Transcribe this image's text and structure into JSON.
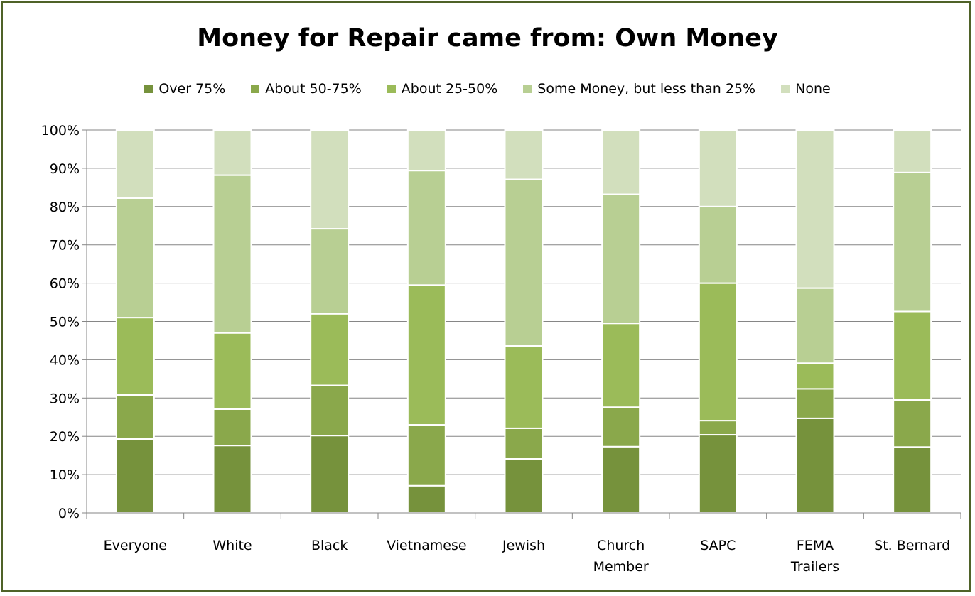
{
  "chart_data": {
    "type": "bar",
    "stacked": true,
    "title": "Money for Repair came from: Own Money",
    "xlabel": "",
    "ylabel": "",
    "ylim": [
      0,
      100
    ],
    "y_ticks": [
      "0%",
      "10%",
      "20%",
      "30%",
      "40%",
      "50%",
      "60%",
      "70%",
      "80%",
      "90%",
      "100%"
    ],
    "grid": true,
    "legend_position": "top",
    "categories": [
      [
        "Everyone"
      ],
      [
        "White"
      ],
      [
        "Black"
      ],
      [
        "Vietnamese"
      ],
      [
        "Jewish"
      ],
      [
        "Church",
        "Member"
      ],
      [
        "SAPC"
      ],
      [
        "FEMA",
        "Trailers"
      ],
      [
        "St. Bernard"
      ]
    ],
    "series": [
      {
        "name": "Over 75%",
        "color": "#76923c",
        "values": [
          19.3,
          17.6,
          20.2,
          7.1,
          14.1,
          17.3,
          20.4,
          24.7,
          17.2
        ]
      },
      {
        "name": "About 50-75%",
        "color": "#8aa84b",
        "values": [
          11.5,
          9.5,
          13.1,
          15.9,
          8.0,
          10.3,
          3.7,
          7.7,
          12.3
        ]
      },
      {
        "name": "About 25-50%",
        "color": "#9bbb59",
        "values": [
          20.2,
          19.9,
          18.7,
          36.5,
          21.5,
          21.9,
          35.9,
          6.7,
          23.1
        ]
      },
      {
        "name": "Some Money, but less than 25%",
        "color": "#b8cf93",
        "values": [
          31.2,
          41.2,
          22.2,
          29.9,
          43.5,
          33.7,
          20.0,
          19.6,
          36.3
        ]
      },
      {
        "name": "None",
        "color": "#d2dfbd",
        "values": [
          17.8,
          11.8,
          25.8,
          10.6,
          12.9,
          16.8,
          20.0,
          41.3,
          11.1
        ]
      }
    ]
  }
}
